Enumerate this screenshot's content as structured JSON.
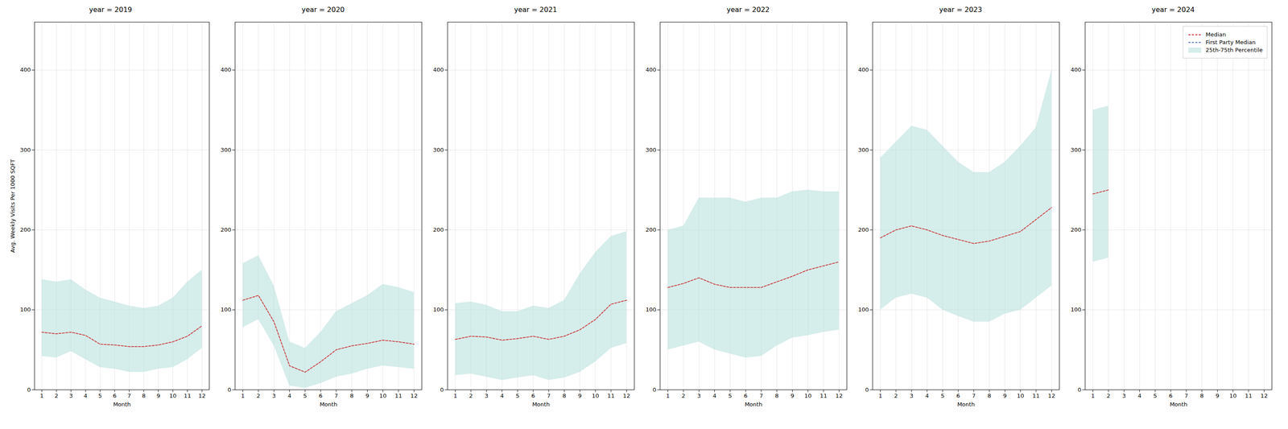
{
  "chart_data": [
    {
      "type": "line",
      "title": "year = 2019",
      "xlabel": "Month",
      "ylabel": "Avg. Weekly Visits Per 1000 SQFT",
      "x": [
        1,
        2,
        3,
        4,
        5,
        6,
        7,
        8,
        9,
        10,
        11,
        12
      ],
      "xlim": [
        0.5,
        12.5
      ],
      "xticks": [
        1,
        2,
        3,
        4,
        5,
        6,
        7,
        8,
        9,
        10,
        11,
        12
      ],
      "ylim": [
        0,
        460
      ],
      "yticks": [
        0,
        100,
        200,
        300,
        400
      ],
      "grid": true,
      "series": [
        {
          "name": "Median",
          "color": "#cc3333",
          "line_style": "dashed",
          "values": [
            72,
            70,
            72,
            68,
            57,
            56,
            54,
            54,
            56,
            60,
            67,
            80
          ]
        },
        {
          "name": "25th-75th Percentile",
          "type": "area",
          "color": "#b2dfdb",
          "lower": [
            42,
            40,
            48,
            38,
            28,
            26,
            22,
            22,
            26,
            28,
            38,
            52
          ],
          "upper": [
            138,
            135,
            138,
            125,
            115,
            110,
            105,
            102,
            105,
            115,
            135,
            150
          ]
        }
      ]
    },
    {
      "type": "line",
      "title": "year = 2020",
      "xlabel": "Month",
      "x": [
        1,
        2,
        3,
        4,
        5,
        6,
        7,
        8,
        9,
        10,
        11,
        12
      ],
      "xlim": [
        0.5,
        12.5
      ],
      "xticks": [
        1,
        2,
        3,
        4,
        5,
        6,
        7,
        8,
        9,
        10,
        11,
        12
      ],
      "ylim": [
        0,
        460
      ],
      "yticks": [
        0,
        100,
        200,
        300,
        400
      ],
      "grid": true,
      "series": [
        {
          "name": "Median",
          "color": "#cc3333",
          "line_style": "dashed",
          "values": [
            112,
            118,
            85,
            30,
            22,
            35,
            50,
            55,
            58,
            62,
            60,
            57
          ]
        },
        {
          "name": "25th-75th Percentile",
          "type": "area",
          "color": "#b2dfdb",
          "lower": [
            78,
            88,
            55,
            5,
            2,
            8,
            16,
            20,
            26,
            30,
            28,
            26
          ],
          "upper": [
            158,
            168,
            130,
            60,
            52,
            72,
            98,
            108,
            118,
            132,
            128,
            122
          ]
        }
      ]
    },
    {
      "type": "line",
      "title": "year = 2021",
      "xlabel": "Month",
      "x": [
        1,
        2,
        3,
        4,
        5,
        6,
        7,
        8,
        9,
        10,
        11,
        12
      ],
      "xlim": [
        0.5,
        12.5
      ],
      "xticks": [
        1,
        2,
        3,
        4,
        5,
        6,
        7,
        8,
        9,
        10,
        11,
        12
      ],
      "ylim": [
        0,
        460
      ],
      "yticks": [
        0,
        100,
        200,
        300,
        400
      ],
      "grid": true,
      "series": [
        {
          "name": "Median",
          "color": "#cc3333",
          "line_style": "dashed",
          "values": [
            63,
            67,
            66,
            62,
            64,
            67,
            63,
            67,
            75,
            88,
            107,
            112
          ]
        },
        {
          "name": "25th-75th Percentile",
          "type": "area",
          "color": "#b2dfdb",
          "lower": [
            18,
            20,
            16,
            12,
            15,
            18,
            12,
            15,
            22,
            35,
            52,
            58
          ],
          "upper": [
            108,
            110,
            106,
            98,
            98,
            105,
            102,
            112,
            145,
            172,
            192,
            198
          ]
        }
      ]
    },
    {
      "type": "line",
      "title": "year = 2022",
      "xlabel": "Month",
      "x": [
        1,
        2,
        3,
        4,
        5,
        6,
        7,
        8,
        9,
        10,
        11,
        12
      ],
      "xlim": [
        0.5,
        12.5
      ],
      "xticks": [
        1,
        2,
        3,
        4,
        5,
        6,
        7,
        8,
        9,
        10,
        11,
        12
      ],
      "ylim": [
        0,
        460
      ],
      "yticks": [
        0,
        100,
        200,
        300,
        400
      ],
      "grid": true,
      "series": [
        {
          "name": "Median",
          "color": "#cc3333",
          "line_style": "dashed",
          "values": [
            128,
            133,
            140,
            132,
            128,
            128,
            128,
            135,
            142,
            150,
            155,
            160
          ]
        },
        {
          "name": "25th-75th Percentile",
          "type": "area",
          "color": "#b2dfdb",
          "lower": [
            50,
            55,
            60,
            50,
            45,
            40,
            42,
            55,
            65,
            68,
            72,
            75
          ],
          "upper": [
            200,
            205,
            240,
            240,
            240,
            235,
            240,
            240,
            248,
            250,
            248,
            248
          ]
        }
      ]
    },
    {
      "type": "line",
      "title": "year = 2023",
      "xlabel": "Month",
      "x": [
        1,
        2,
        3,
        4,
        5,
        6,
        7,
        8,
        9,
        10,
        11,
        12
      ],
      "xlim": [
        0.5,
        12.5
      ],
      "xticks": [
        1,
        2,
        3,
        4,
        5,
        6,
        7,
        8,
        9,
        10,
        11,
        12
      ],
      "ylim": [
        0,
        460
      ],
      "yticks": [
        0,
        100,
        200,
        300,
        400
      ],
      "grid": true,
      "series": [
        {
          "name": "Median",
          "color": "#cc3333",
          "line_style": "dashed",
          "values": [
            190,
            200,
            205,
            200,
            193,
            188,
            183,
            186,
            192,
            198,
            213,
            228
          ]
        },
        {
          "name": "25th-75th Percentile",
          "type": "area",
          "color": "#b2dfdb",
          "lower": [
            100,
            115,
            120,
            115,
            100,
            92,
            85,
            85,
            95,
            100,
            115,
            130
          ],
          "upper": [
            290,
            310,
            330,
            325,
            305,
            285,
            272,
            272,
            285,
            305,
            328,
            400
          ]
        }
      ]
    },
    {
      "type": "line",
      "title": "year = 2024",
      "xlabel": "Month",
      "x": [
        1,
        2,
        3,
        4,
        5,
        6,
        7,
        8,
        9,
        10,
        11,
        12
      ],
      "xlim": [
        0.5,
        12.5
      ],
      "xticks": [
        1,
        2,
        3,
        4,
        5,
        6,
        7,
        8,
        9,
        10,
        11,
        12
      ],
      "ylim": [
        0,
        460
      ],
      "yticks": [
        0,
        100,
        200,
        300,
        400
      ],
      "grid": true,
      "legend": "upper right",
      "series": [
        {
          "name": "Median",
          "color": "#cc3333",
          "line_style": "dashed",
          "values": [
            245,
            250,
            null,
            null,
            null,
            null,
            null,
            null,
            null,
            null,
            null,
            null
          ]
        },
        {
          "name": "First Party Median",
          "color": "#5577bb",
          "line_style": "dashed",
          "values": [
            null,
            null,
            null,
            null,
            null,
            null,
            null,
            null,
            null,
            null,
            null,
            null
          ]
        },
        {
          "name": "25th-75th Percentile",
          "type": "area",
          "color": "#b2dfdb",
          "lower": [
            160,
            165,
            null,
            null,
            null,
            null,
            null,
            null,
            null,
            null,
            null,
            null
          ],
          "upper": [
            350,
            355,
            null,
            null,
            null,
            null,
            null,
            null,
            null,
            null,
            null,
            null
          ]
        }
      ]
    }
  ]
}
